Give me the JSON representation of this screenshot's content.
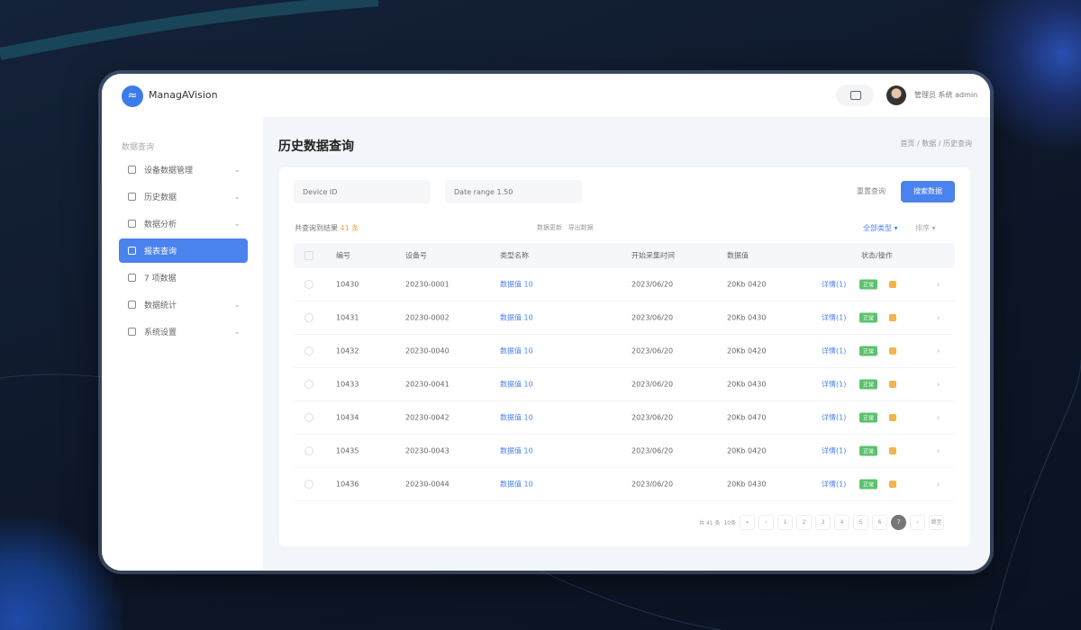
{
  "app": {
    "brand": "ManagAVision",
    "user": "管理员 系统 admin",
    "accent": "#4a82ee"
  },
  "sidebar": {
    "header": "数据查询",
    "items": [
      {
        "label": "设备数据管理",
        "icon": "list-icon",
        "chev": true
      },
      {
        "label": "历史数据",
        "icon": "folder-icon",
        "chev": true
      },
      {
        "label": "数据分析",
        "icon": "database-icon",
        "chev": true
      },
      {
        "label": "报表查询",
        "icon": "report-icon",
        "chev": false,
        "active": true
      },
      {
        "label": "7 项数据",
        "icon": "calendar-icon",
        "chev": false
      },
      {
        "label": "数据统计",
        "icon": "chart-icon",
        "chev": true
      },
      {
        "label": "系统设置",
        "icon": "settings-icon",
        "chev": true
      }
    ]
  },
  "page": {
    "title": "历史数据查询",
    "breadcrumb": [
      "首页",
      "数据",
      "历史查询"
    ]
  },
  "filters": {
    "input1": "Device ID",
    "input2": "Date range 1.50",
    "reset": "重置查询",
    "search": "搜索数据"
  },
  "summary": {
    "label": "共查询到结果",
    "count": "41 条",
    "mid1": "数据更新",
    "mid2": "导出数据",
    "filter1": "全部类型 ▾",
    "filter2": "排序 ▾"
  },
  "table": {
    "headers": [
      "编号",
      "设备号",
      "类型名称",
      "开始采集时间",
      "数据值",
      "状态/操作"
    ],
    "rows": [
      [
        "10430",
        "20230-0001",
        "数据值 10",
        "2023/06/20",
        "20Kb 0420",
        "详情(1)"
      ],
      [
        "10431",
        "20230-0002",
        "数据值 10",
        "2023/06/20",
        "20Kb 0430",
        "详情(1)"
      ],
      [
        "10432",
        "20230-0040",
        "数据值 10",
        "2023/06/20",
        "20Kb 0420",
        "详情(1)"
      ],
      [
        "10433",
        "20230-0041",
        "数据值 10",
        "2023/06/20",
        "20Kb 0430",
        "详情(1)"
      ],
      [
        "10434",
        "20230-0042",
        "数据值 10",
        "2023/06/20",
        "20Kb 0470",
        "详情(1)"
      ],
      [
        "10435",
        "20230-0043",
        "数据值 10",
        "2023/06/20",
        "20Kb 0420",
        "详情(1)"
      ],
      [
        "10436",
        "20230-0044",
        "数据值 10",
        "2023/06/20",
        "20Kb 0430",
        "详情(1)"
      ]
    ],
    "badge": "正常"
  },
  "pager": {
    "total": "共 41 条",
    "size": "10条",
    "pages": [
      "«",
      "‹",
      "1",
      "2",
      "3",
      "4",
      "5",
      "6"
    ],
    "current": "7",
    "next": "›",
    "jump": "跳至"
  }
}
